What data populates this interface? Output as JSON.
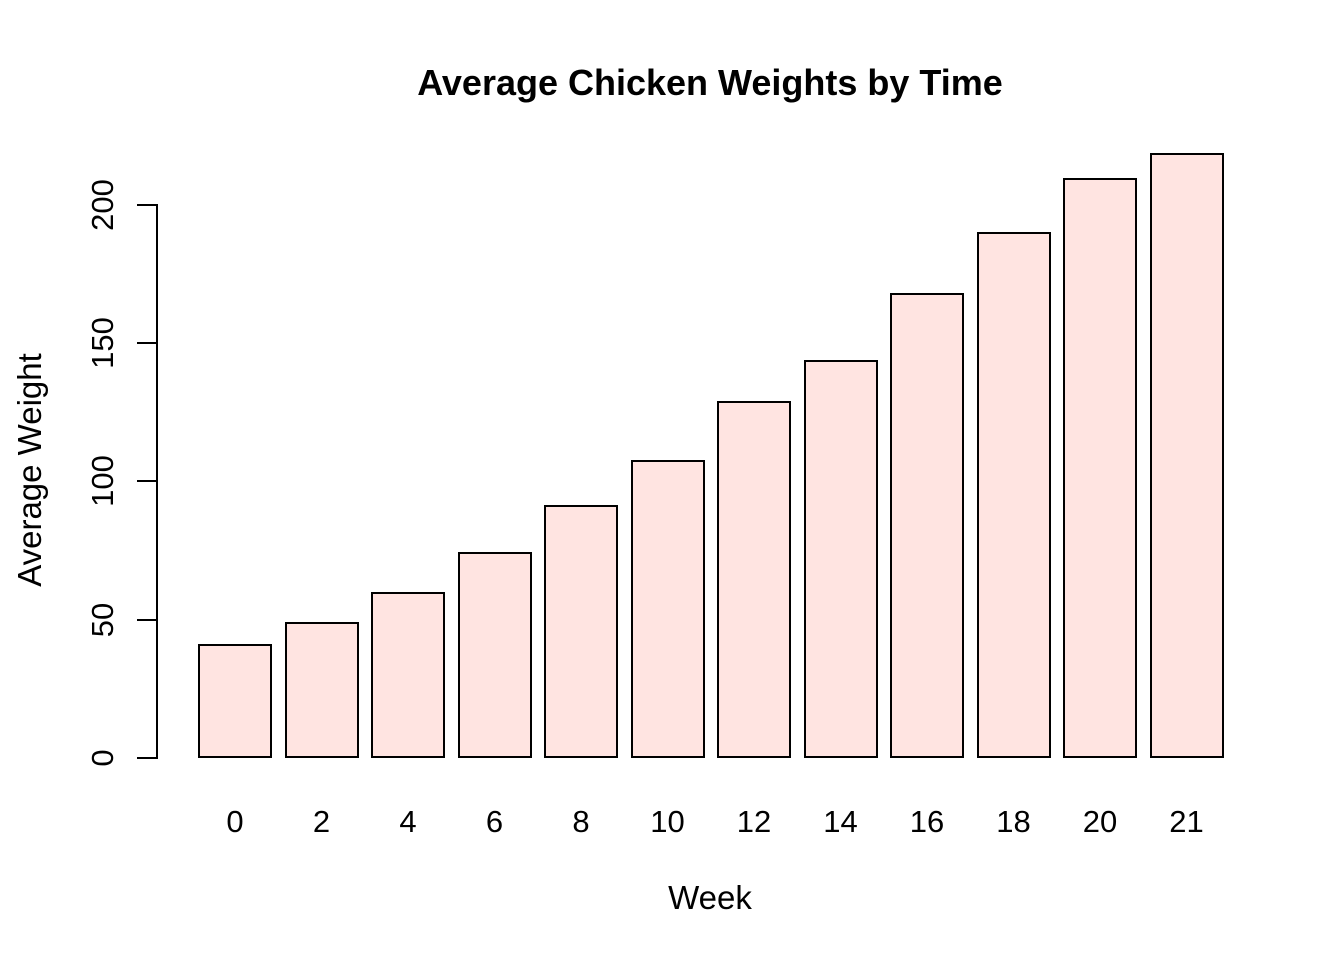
{
  "chart": {
    "title": "Average Chicken Weights by Time",
    "xlabel": "Week",
    "ylabel": "Average Weight"
  },
  "chart_data": {
    "type": "bar",
    "title": "Average Chicken Weights by Time",
    "xlabel": "Week",
    "ylabel": "Average Weight",
    "categories": [
      "0",
      "2",
      "4",
      "6",
      "8",
      "10",
      "12",
      "14",
      "16",
      "18",
      "20",
      "21"
    ],
    "values": [
      41.1,
      49.2,
      60.0,
      74.3,
      91.3,
      107.8,
      129.2,
      143.8,
      168.1,
      190.2,
      209.7,
      218.7
    ],
    "y_ticks": [
      0,
      50,
      100,
      150,
      200
    ],
    "ylim": [
      0,
      220
    ],
    "grid": false,
    "legend": null,
    "bar_fill": "#FFE4E1",
    "bar_border": "#000000",
    "text_color": "#000000",
    "background": "#FFFFFF"
  }
}
